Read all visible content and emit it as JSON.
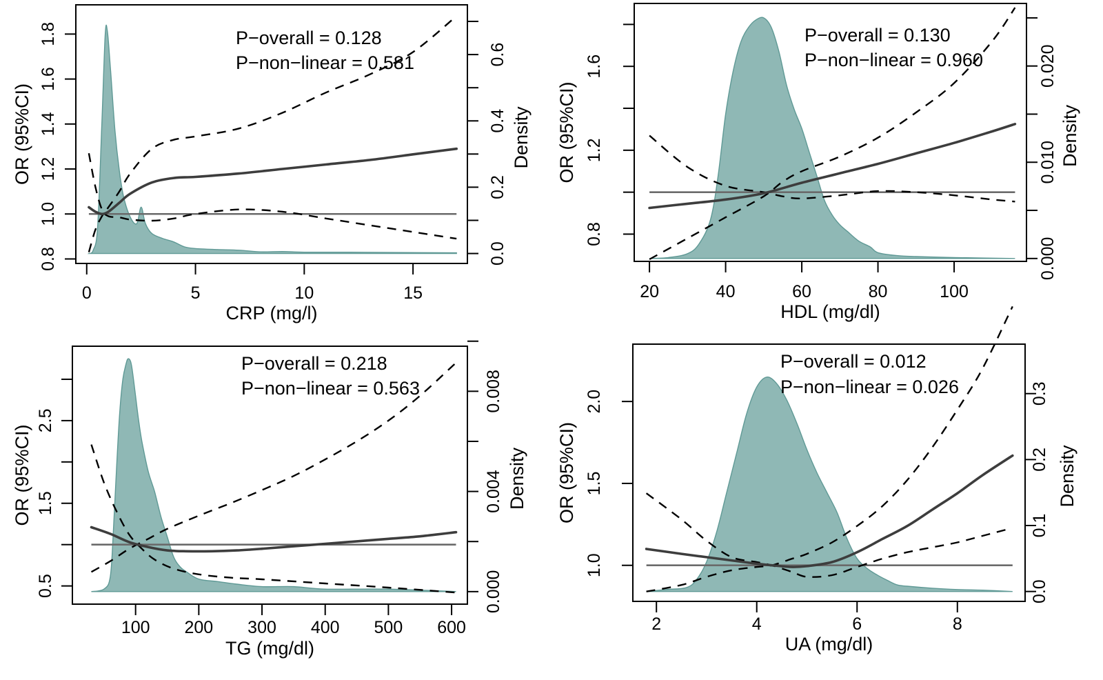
{
  "figure": {
    "colors": {
      "density_fill": "#8fb8b5",
      "density_stroke": "#5f9995",
      "or_line": "#3d3d3d",
      "ci_line": "#000000",
      "reference_line": "#6a6a6a"
    }
  },
  "chart_data": [
    {
      "type": "line",
      "panel": "top-left",
      "title": "",
      "xlabel": "CRP (mg/l)",
      "ylabel": "OR (95%CI)",
      "y2label": "Density",
      "xlim": [
        -0.5,
        17.5
      ],
      "ylim": [
        0.78,
        1.93
      ],
      "y2lim": [
        -0.03,
        0.75
      ],
      "xticks": [
        0,
        5,
        10,
        15
      ],
      "xtick_labels": [
        "0",
        "5",
        "10",
        "15"
      ],
      "yticks": [
        0.8,
        1.0,
        1.2,
        1.4,
        1.6,
        1.8
      ],
      "ytick_labels": [
        "0.8",
        "1.0",
        "1.2",
        "1.4",
        "1.6",
        "1.8"
      ],
      "y2ticks": [
        0.0,
        0.1,
        0.2,
        0.3,
        0.4,
        0.5,
        0.6,
        0.7
      ],
      "y2tick_labels": [
        "0.0",
        "",
        "0.2",
        "",
        "0.4",
        "",
        "0.6",
        ""
      ],
      "reference_y": 1.0,
      "annotations": [
        "P−overall = 0.128",
        "P−non−linear = 0.581"
      ],
      "series": [
        {
          "name": "OR",
          "x": [
            0.1,
            0.4,
            0.7,
            1.0,
            1.5,
            2.0,
            3.0,
            4.0,
            5.0,
            7.0,
            9.0,
            11.0,
            13.0,
            15.0,
            17.0
          ],
          "values": [
            1.03,
            1.01,
            1.0,
            1.01,
            1.05,
            1.09,
            1.14,
            1.16,
            1.165,
            1.18,
            1.2,
            1.22,
            1.24,
            1.265,
            1.29
          ]
        },
        {
          "name": "CI upper",
          "x": [
            0.1,
            0.4,
            0.7,
            1.0,
            1.5,
            2.0,
            3.0,
            4.0,
            5.0,
            7.0,
            9.0,
            11.0,
            13.0,
            15.0,
            17.0
          ],
          "values": [
            0.83,
            0.93,
            0.99,
            1.03,
            1.1,
            1.18,
            1.29,
            1.33,
            1.345,
            1.38,
            1.45,
            1.54,
            1.62,
            1.72,
            1.88
          ]
        },
        {
          "name": "CI lower",
          "x": [
            0.1,
            0.4,
            0.7,
            1.0,
            1.5,
            2.0,
            3.0,
            4.0,
            5.0,
            7.0,
            9.0,
            11.0,
            13.0,
            15.0,
            17.0
          ],
          "values": [
            1.27,
            1.12,
            1.02,
            0.99,
            0.985,
            0.975,
            0.97,
            0.98,
            1.0,
            1.02,
            1.01,
            0.98,
            0.95,
            0.92,
            0.89
          ]
        },
        {
          "name": "Density",
          "axis": "right",
          "x": [
            0.1,
            0.3,
            0.5,
            0.7,
            0.85,
            0.95,
            1.1,
            1.3,
            1.5,
            1.7,
            2.0,
            2.3,
            2.5,
            2.7,
            3.0,
            3.5,
            4.0,
            4.5,
            5.0,
            6.0,
            7.0,
            8.0,
            9.0,
            10.0,
            12.0,
            14.0,
            17.0
          ],
          "values": [
            0.0,
            0.01,
            0.08,
            0.4,
            0.66,
            0.67,
            0.55,
            0.37,
            0.25,
            0.17,
            0.11,
            0.09,
            0.14,
            0.09,
            0.06,
            0.045,
            0.035,
            0.02,
            0.015,
            0.012,
            0.01,
            0.005,
            0.006,
            0.004,
            0.004,
            0.003,
            0.002
          ]
        }
      ]
    },
    {
      "type": "line",
      "panel": "top-right",
      "title": "",
      "xlabel": "HDL (mg/dl)",
      "ylabel": "OR (95%CI)",
      "y2label": "Density",
      "xlim": [
        16,
        119
      ],
      "ylim": [
        0.67,
        1.9
      ],
      "y2lim": [
        -0.0003,
        0.0265
      ],
      "xticks": [
        20,
        40,
        60,
        80,
        100
      ],
      "xtick_labels": [
        "20",
        "40",
        "60",
        "80",
        "100"
      ],
      "yticks": [
        0.8,
        1.0,
        1.2,
        1.4,
        1.6,
        1.8
      ],
      "ytick_labels": [
        "0.8",
        "",
        "1.2",
        "",
        "1.6",
        ""
      ],
      "y2ticks": [
        0.0,
        0.005,
        0.01,
        0.015,
        0.02,
        0.025
      ],
      "y2tick_labels": [
        "0.000",
        "",
        "0.010",
        "",
        "0.020",
        ""
      ],
      "reference_y": 1.0,
      "annotations": [
        "P−overall = 0.130",
        "P−non−linear = 0.960"
      ],
      "series": [
        {
          "name": "OR",
          "x": [
            20,
            30,
            40,
            50,
            60,
            70,
            80,
            90,
            100,
            110,
            116
          ],
          "values": [
            0.925,
            0.945,
            0.965,
            0.995,
            1.045,
            1.09,
            1.135,
            1.185,
            1.235,
            1.29,
            1.325
          ]
        },
        {
          "name": "CI upper",
          "x": [
            20,
            30,
            40,
            50,
            55,
            60,
            70,
            80,
            90,
            100,
            110,
            116
          ],
          "values": [
            0.68,
            0.78,
            0.88,
            0.98,
            1.05,
            1.1,
            1.17,
            1.26,
            1.38,
            1.52,
            1.72,
            1.88
          ]
        },
        {
          "name": "CI lower",
          "x": [
            20,
            30,
            40,
            50,
            55,
            60,
            70,
            80,
            90,
            100,
            110,
            116
          ],
          "values": [
            1.27,
            1.12,
            1.03,
            1.0,
            0.98,
            0.97,
            0.985,
            1.005,
            1.0,
            0.985,
            0.965,
            0.955
          ]
        },
        {
          "name": "Density",
          "axis": "right",
          "x": [
            20,
            25,
            30,
            33,
            36,
            38,
            40,
            42,
            44,
            46,
            48,
            50,
            52,
            54,
            56,
            58,
            60,
            62,
            64,
            66,
            68,
            70,
            72,
            75,
            78,
            80,
            85,
            90,
            100,
            116
          ],
          "values": [
            0.0,
            0.0001,
            0.0005,
            0.0015,
            0.004,
            0.0085,
            0.015,
            0.0195,
            0.0225,
            0.024,
            0.0248,
            0.025,
            0.024,
            0.0215,
            0.018,
            0.0155,
            0.0135,
            0.011,
            0.0085,
            0.006,
            0.0045,
            0.0035,
            0.0028,
            0.0018,
            0.0012,
            0.0006,
            0.0003,
            0.0002,
            0.0001,
            0.0
          ]
        }
      ]
    },
    {
      "type": "line",
      "panel": "bottom-left",
      "title": "",
      "xlabel": "TG (mg/dl)",
      "ylabel": "OR (95%CI)",
      "y2label": "Density",
      "xlim": [
        0,
        625
      ],
      "ylim": [
        0.28,
        3.4
      ],
      "y2lim": [
        -0.0005,
        0.0098
      ],
      "xticks": [
        100,
        200,
        300,
        400,
        500,
        600
      ],
      "xtick_labels": [
        "100",
        "200",
        "300",
        "400",
        "500",
        "600"
      ],
      "yticks": [
        0.5,
        1.0,
        1.5,
        2.0,
        2.5,
        3.0
      ],
      "ytick_labels": [
        "0.5",
        "",
        "1.5",
        "",
        "2.5",
        ""
      ],
      "y2ticks": [
        0.0,
        0.002,
        0.004,
        0.006,
        0.008,
        0.01
      ],
      "y2tick_labels": [
        "0.000",
        "",
        "0.004",
        "",
        "0.008",
        ""
      ],
      "reference_y": 1.0,
      "annotations": [
        "P−overall = 0.218",
        "P−non−linear = 0.563"
      ],
      "series": [
        {
          "name": "OR",
          "x": [
            30,
            60,
            90,
            120,
            150,
            180,
            220,
            260,
            300,
            350,
            400,
            450,
            500,
            550,
            607
          ],
          "values": [
            1.21,
            1.13,
            1.03,
            0.97,
            0.93,
            0.92,
            0.92,
            0.93,
            0.95,
            0.98,
            1.01,
            1.04,
            1.07,
            1.1,
            1.15
          ]
        },
        {
          "name": "CI upper",
          "x": [
            30,
            60,
            90,
            120,
            150,
            200,
            250,
            300,
            350,
            400,
            450,
            500,
            550,
            607
          ],
          "values": [
            0.67,
            0.8,
            0.95,
            1.07,
            1.19,
            1.35,
            1.5,
            1.66,
            1.83,
            2.03,
            2.25,
            2.5,
            2.8,
            3.2
          ]
        },
        {
          "name": "CI lower",
          "x": [
            30,
            50,
            70,
            90,
            110,
            130,
            160,
            200,
            250,
            300,
            400,
            500,
            607
          ],
          "values": [
            2.21,
            1.75,
            1.4,
            1.12,
            0.95,
            0.82,
            0.71,
            0.64,
            0.6,
            0.58,
            0.53,
            0.48,
            0.42
          ]
        },
        {
          "name": "Density",
          "axis": "right",
          "x": [
            30,
            50,
            60,
            65,
            70,
            75,
            80,
            85,
            88,
            92,
            95,
            100,
            105,
            110,
            120,
            130,
            140,
            150,
            160,
            170,
            180,
            200,
            230,
            260,
            300,
            350,
            400,
            500,
            607
          ],
          "values": [
            0.0,
            0.0001,
            0.0006,
            0.0025,
            0.005,
            0.0072,
            0.0085,
            0.0091,
            0.0093,
            0.0092,
            0.0088,
            0.0078,
            0.0068,
            0.006,
            0.0048,
            0.004,
            0.003,
            0.0022,
            0.0014,
            0.001,
            0.0008,
            0.0005,
            0.0004,
            0.0003,
            0.0002,
            0.0002,
            0.0001,
            0.0001,
            0.0
          ]
        }
      ]
    },
    {
      "type": "line",
      "panel": "bottom-right",
      "title": "",
      "xlabel": "UA (mg/dl)",
      "ylabel": "OR (95%CI)",
      "y2label": "Density",
      "xlim": [
        1.53,
        9.35
      ],
      "ylim": [
        0.78,
        2.35
      ],
      "y2lim": [
        -0.015,
        0.375
      ],
      "xticks": [
        2,
        4,
        6,
        8
      ],
      "xtick_labels": [
        "2",
        "4",
        "6",
        "8"
      ],
      "yticks": [
        1.0,
        1.5,
        2.0
      ],
      "ytick_labels": [
        "1.0",
        "1.5",
        "2.0"
      ],
      "y2ticks": [
        0.0,
        0.1,
        0.2,
        0.3
      ],
      "y2tick_labels": [
        "0.0",
        "0.1",
        "0.2",
        "0.3"
      ],
      "reference_y": 1.0,
      "annotations": [
        "P−overall = 0.012",
        "P−non−linear = 0.026"
      ],
      "series": [
        {
          "name": "OR",
          "x": [
            1.8,
            2.5,
            3.0,
            3.5,
            4.0,
            4.3,
            4.7,
            5.0,
            5.5,
            6.0,
            6.5,
            7.0,
            7.5,
            8.0,
            8.5,
            9.1
          ],
          "values": [
            1.1,
            1.07,
            1.05,
            1.03,
            1.01,
            1.0,
            0.99,
            0.995,
            1.02,
            1.08,
            1.16,
            1.24,
            1.34,
            1.44,
            1.55,
            1.67
          ]
        },
        {
          "name": "CI upper",
          "x": [
            1.8,
            2.5,
            3.0,
            3.5,
            4.0,
            4.3,
            4.7,
            5.0,
            5.5,
            6.0,
            6.5,
            7.0,
            7.5,
            8.0,
            8.5,
            9.1
          ],
          "values": [
            0.84,
            0.88,
            0.93,
            0.97,
            0.99,
            1.0,
            1.04,
            1.07,
            1.14,
            1.24,
            1.36,
            1.52,
            1.72,
            1.95,
            2.2,
            2.58
          ]
        },
        {
          "name": "CI lower",
          "x": [
            1.8,
            2.5,
            3.0,
            3.5,
            4.0,
            4.3,
            4.7,
            5.0,
            5.5,
            6.0,
            6.5,
            7.0,
            7.5,
            8.0,
            8.5,
            9.0
          ],
          "values": [
            1.44,
            1.28,
            1.15,
            1.05,
            1.02,
            1.0,
            0.96,
            0.93,
            0.94,
            0.99,
            1.04,
            1.08,
            1.11,
            1.14,
            1.18,
            1.22
          ]
        },
        {
          "name": "Density",
          "axis": "right",
          "x": [
            1.8,
            2.2,
            2.6,
            2.8,
            3.0,
            3.2,
            3.4,
            3.6,
            3.8,
            4.0,
            4.2,
            4.4,
            4.6,
            4.8,
            5.0,
            5.2,
            5.4,
            5.6,
            5.8,
            6.0,
            6.2,
            6.4,
            6.6,
            6.8,
            7.0,
            7.5,
            8.0,
            8.5,
            9.1
          ],
          "values": [
            0.0,
            0.003,
            0.006,
            0.018,
            0.045,
            0.09,
            0.15,
            0.21,
            0.27,
            0.31,
            0.325,
            0.315,
            0.29,
            0.255,
            0.215,
            0.18,
            0.15,
            0.12,
            0.08,
            0.05,
            0.035,
            0.025,
            0.017,
            0.01,
            0.008,
            0.005,
            0.003,
            0.002,
            0.0
          ]
        }
      ]
    }
  ]
}
